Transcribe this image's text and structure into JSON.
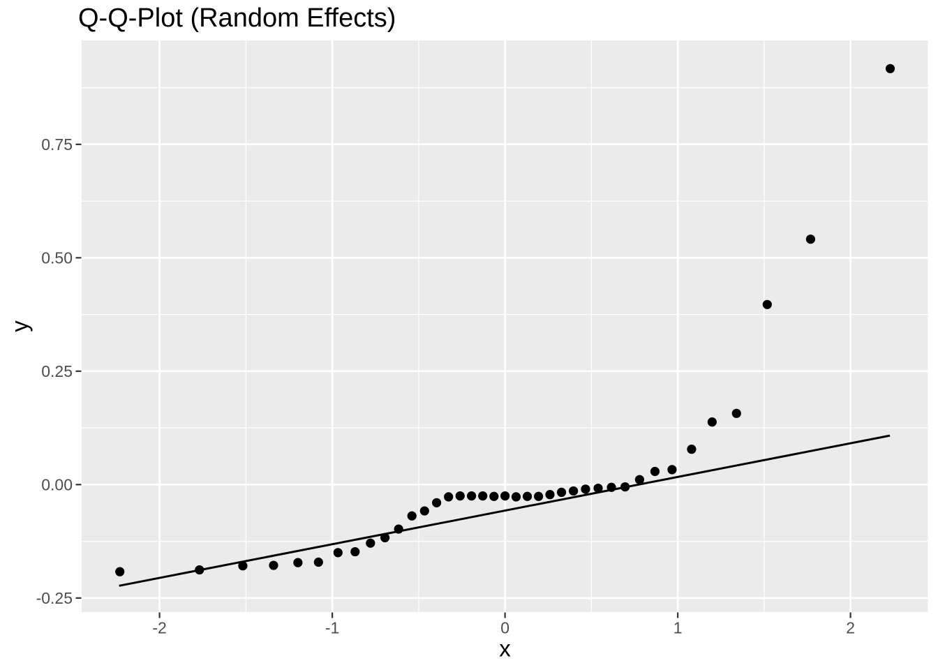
{
  "chart_data": {
    "type": "scatter",
    "subtype": "qq-plot",
    "title": "Q-Q-Plot (Random Effects)",
    "xlabel": "x",
    "ylabel": "y",
    "x_domain": [
      -2.451,
      2.448
    ],
    "y_domain": [
      -0.281,
      0.979
    ],
    "x_ticks": [
      {
        "value": -2,
        "label": "-2"
      },
      {
        "value": -1,
        "label": "-1"
      },
      {
        "value": 0,
        "label": "0"
      },
      {
        "value": 1,
        "label": "1"
      },
      {
        "value": 2,
        "label": "2"
      }
    ],
    "y_ticks": [
      {
        "value": -0.25,
        "label": "-0.25"
      },
      {
        "value": 0.0,
        "label": "0.00"
      },
      {
        "value": 0.25,
        "label": "0.25"
      },
      {
        "value": 0.5,
        "label": "0.50"
      },
      {
        "value": 0.75,
        "label": "0.75"
      }
    ],
    "x_minor_ticks": [
      -1.5,
      -0.5,
      0.5,
      1.5
    ],
    "y_minor_ticks": [
      -0.125,
      0.125,
      0.375,
      0.625,
      0.875
    ],
    "grid": true,
    "legend_position": "none",
    "points": [
      [
        -2.23,
        -0.192
      ],
      [
        -1.769,
        -0.188
      ],
      [
        -1.518,
        -0.179
      ],
      [
        -1.34,
        -0.178
      ],
      [
        -1.199,
        -0.172
      ],
      [
        -1.08,
        -0.171
      ],
      [
        -0.967,
        -0.15
      ],
      [
        -0.868,
        -0.148
      ],
      [
        -0.779,
        -0.129
      ],
      [
        -0.695,
        -0.117
      ],
      [
        -0.616,
        -0.098
      ],
      [
        -0.539,
        -0.069
      ],
      [
        -0.466,
        -0.058
      ],
      [
        -0.396,
        -0.04
      ],
      [
        -0.327,
        -0.027
      ],
      [
        -0.26,
        -0.025
      ],
      [
        -0.194,
        -0.025
      ],
      [
        -0.129,
        -0.025
      ],
      [
        -0.064,
        -0.026
      ],
      [
        0.0,
        -0.025
      ],
      [
        0.064,
        -0.027
      ],
      [
        0.129,
        -0.026
      ],
      [
        0.194,
        -0.026
      ],
      [
        0.26,
        -0.022
      ],
      [
        0.327,
        -0.017
      ],
      [
        0.396,
        -0.014
      ],
      [
        0.466,
        -0.01
      ],
      [
        0.539,
        -0.008
      ],
      [
        0.616,
        -0.006
      ],
      [
        0.695,
        -0.005
      ],
      [
        0.779,
        0.011
      ],
      [
        0.868,
        0.029
      ],
      [
        0.967,
        0.033
      ],
      [
        1.08,
        0.078
      ],
      [
        1.199,
        0.138
      ],
      [
        1.34,
        0.157
      ],
      [
        1.518,
        0.397
      ],
      [
        1.769,
        0.541
      ],
      [
        2.23,
        0.917
      ]
    ],
    "reference_line": {
      "x1": -2.234,
      "y1": -0.223,
      "x2": 2.228,
      "y2": 0.108
    },
    "colors": {
      "panel_background": "#EBEBEB",
      "plot_background": "#FFFFFF",
      "grid_major": "#FFFFFF",
      "grid_minor": "#FFFFFF",
      "point": "#000000",
      "reference_line": "#000000",
      "tick_mark": "#333333",
      "tick_label": "#4D4D4D",
      "title_text": "#000000",
      "axis_title_text": "#000000"
    }
  }
}
